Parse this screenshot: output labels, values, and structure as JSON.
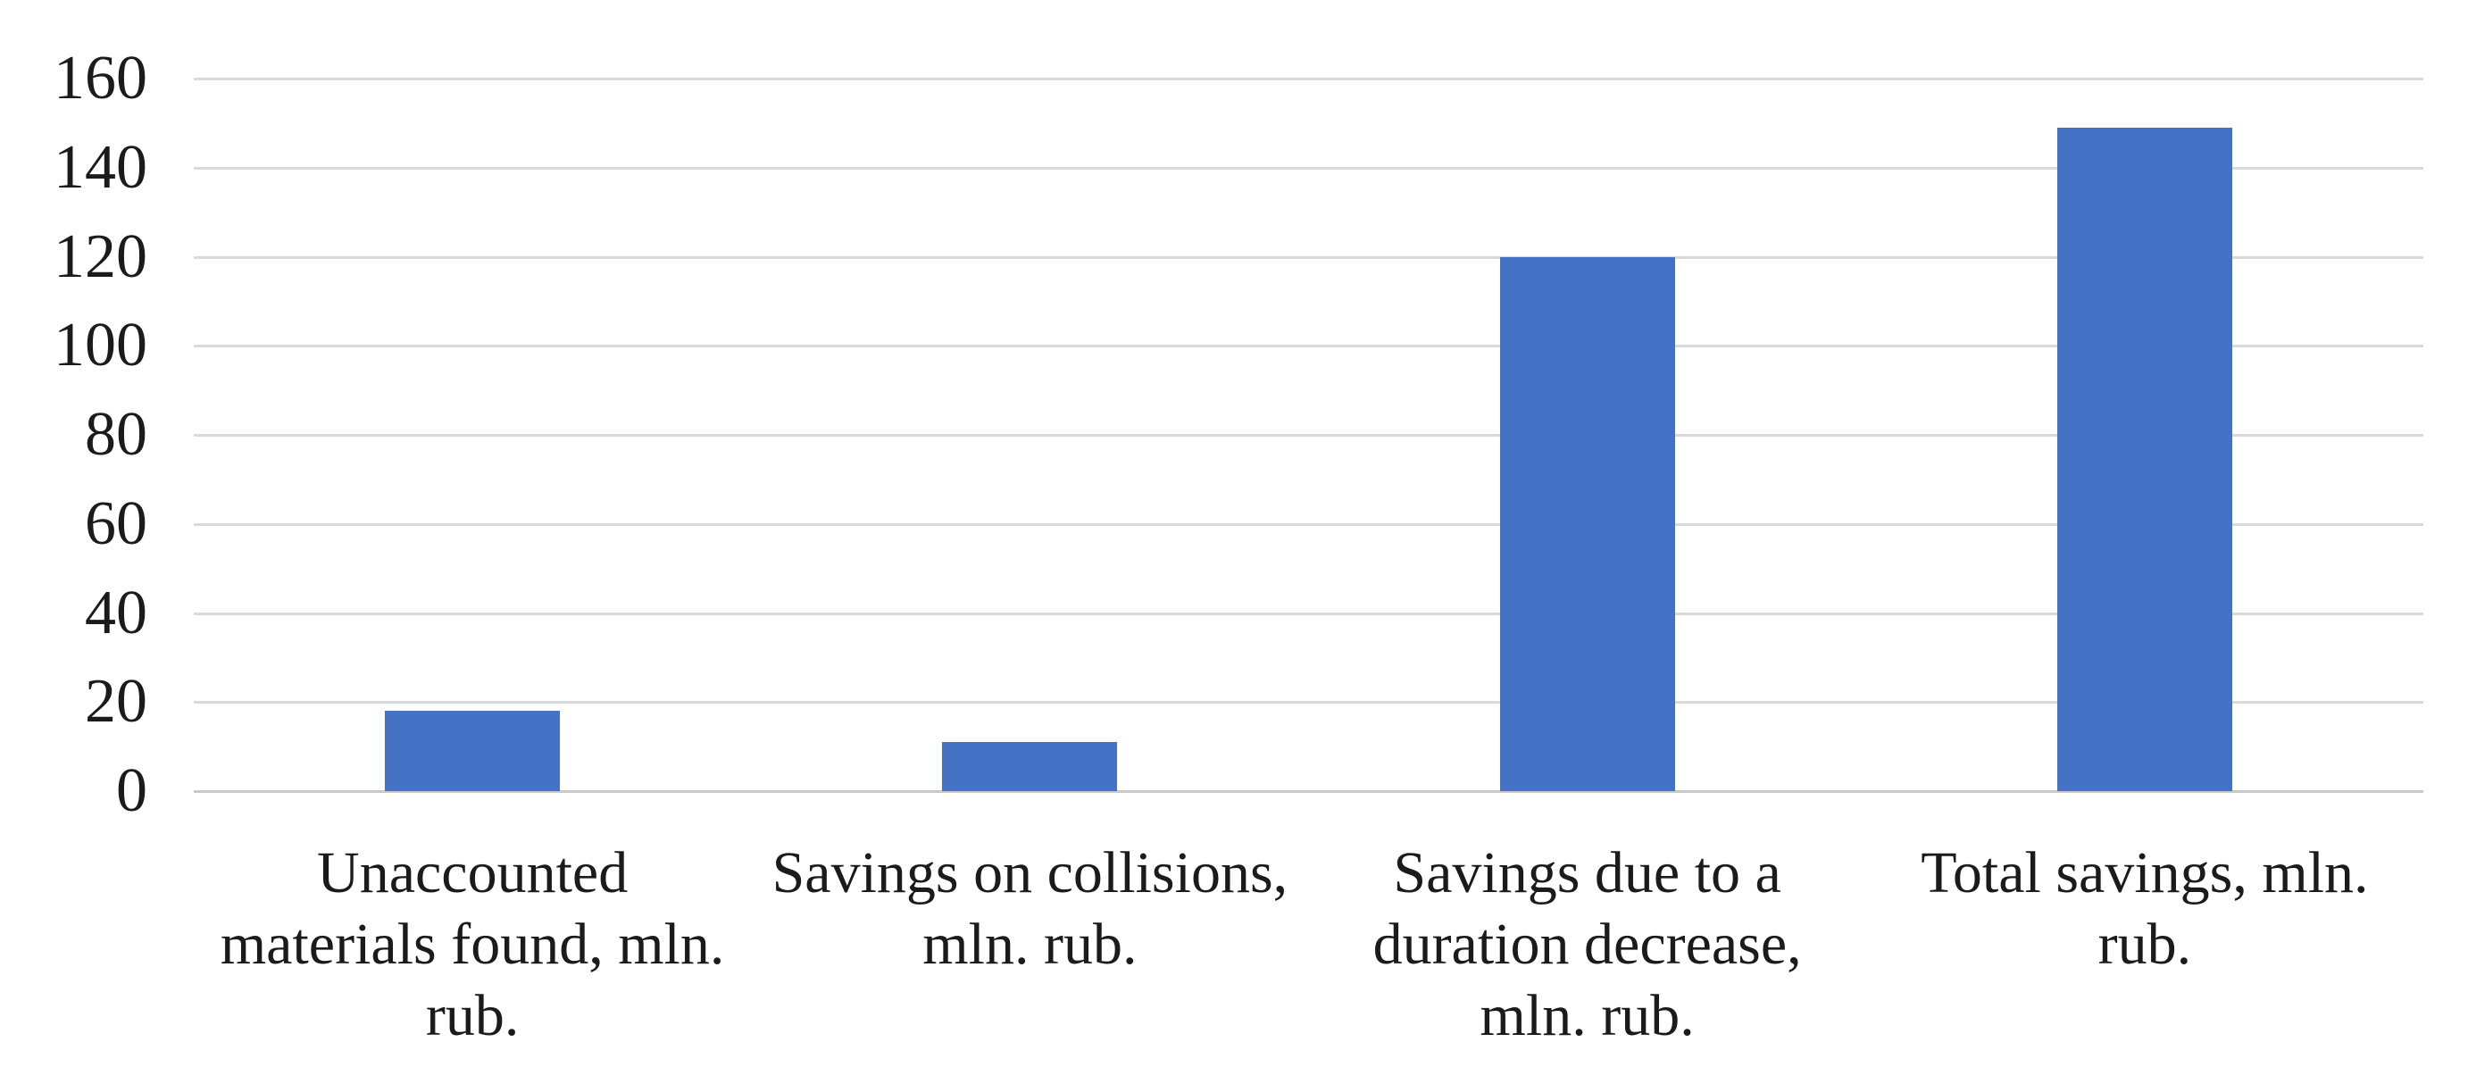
{
  "chart_data": {
    "type": "bar",
    "categories": [
      "Unaccounted materials found, mln. rub.",
      "Savings on collisions, mln. rub.",
      "Savings due to a duration decrease, mln. rub.",
      "Total savings, mln. rub."
    ],
    "categories_display": [
      "Unaccounted\nmaterials found, mln.\nrub.",
      "Savings on collisions,\nmln. rub.",
      "Savings due to a\nduration decrease,\nmln. rub.",
      "Total savings, mln.\nrub."
    ],
    "values": [
      18,
      11,
      120,
      149
    ],
    "title": "",
    "xlabel": "",
    "ylabel": "",
    "ylim": [
      0,
      160
    ],
    "yticks": [
      0,
      20,
      40,
      60,
      80,
      100,
      120,
      140,
      160
    ],
    "grid": "horizontal",
    "legend": "none",
    "colors": {
      "bar_fill": "#4472C4",
      "gridline": "#D9D9D9",
      "baseline": "#C9C9C9",
      "text": "#1B1B1B",
      "background": "#FFFFFF"
    }
  }
}
